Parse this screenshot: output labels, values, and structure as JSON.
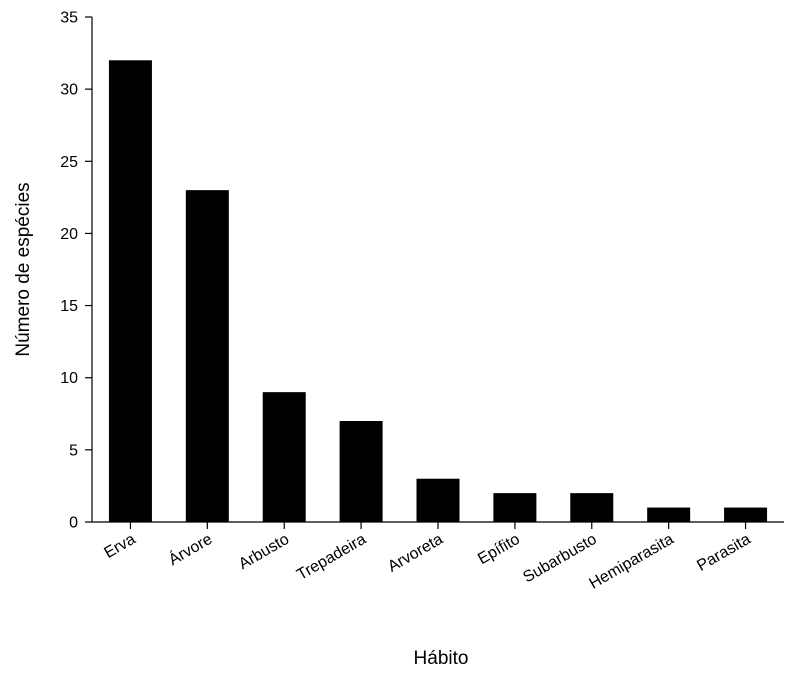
{
  "chart_data": {
    "type": "bar",
    "title": "",
    "xlabel": "Hábito",
    "ylabel": "Número de espécies",
    "categories": [
      "Erva",
      "Árvore",
      "Arbusto",
      "Trepadeira",
      "Arvoreta",
      "Epífito",
      "Subarbusto",
      "Hemiparasita",
      "Parasita"
    ],
    "values": [
      32,
      23,
      9,
      7,
      3,
      2,
      2,
      1,
      1
    ],
    "ylim": [
      0,
      35
    ],
    "yticks": [
      "0",
      "5",
      "10",
      "15",
      "20",
      "25",
      "30",
      "35"
    ],
    "bar_color": "#000000",
    "grid": false,
    "legend": "none"
  }
}
